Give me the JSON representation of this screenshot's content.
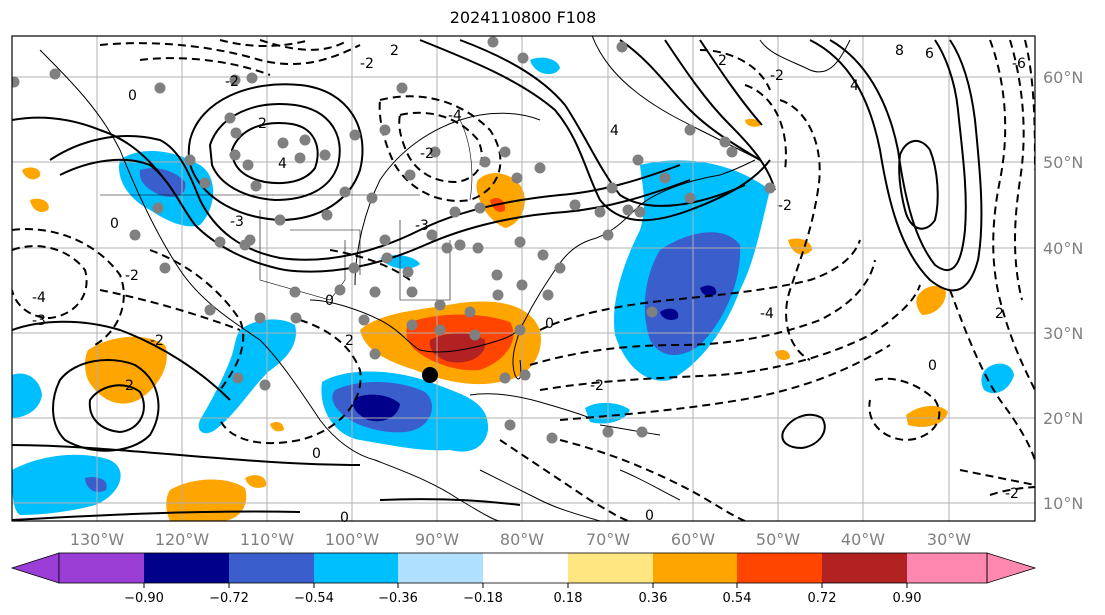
{
  "title": "2024110800 F108",
  "map": {
    "longitude_labels": [
      "130°W",
      "120°W",
      "110°W",
      "100°W",
      "90°W",
      "80°W",
      "70°W",
      "60°W",
      "50°W",
      "40°W",
      "30°W"
    ],
    "latitude_labels": [
      "60°N",
      "50°N",
      "40°N",
      "30°N",
      "20°N",
      "10°N"
    ],
    "contour_labels": [
      "2",
      "-2",
      "0",
      "-2",
      "4",
      "2",
      "-4",
      "-2",
      "-3",
      "-2",
      "-4",
      "-3",
      "0",
      "-2",
      "-2",
      "2",
      "0",
      "0",
      "-2",
      "0",
      "0",
      "0",
      "4",
      "-4",
      "2",
      "-3",
      "-2",
      "-2",
      "8",
      "6",
      "4",
      "-6",
      "2",
      "0",
      "-2"
    ],
    "gridline_color": "#b0b0b0",
    "coastline_color": "#000000"
  },
  "colorbar": {
    "tick_labels": [
      "−0.90",
      "−0.72",
      "−0.54",
      "−0.36",
      "−0.18",
      "0.18",
      "0.36",
      "0.54",
      "0.72",
      "0.90"
    ],
    "colors": [
      "#9a3ed6",
      "#00008b",
      "#3a5fcd",
      "#00bfff",
      "#b0e0ff",
      "#ffffff",
      "#ffe680",
      "#ffa500",
      "#ff4500",
      "#b22222",
      "#ff88b0"
    ]
  },
  "shading_colors": {
    "neg_strong": "#00008b",
    "neg_med": "#3a5fcd",
    "neg_light": "#00bfff",
    "pos_light": "#ffa500",
    "pos_med": "#ff4500",
    "pos_strong": "#b22222"
  },
  "markers": {
    "station_color": "#808080",
    "storm_marker_color": "#000000"
  }
}
